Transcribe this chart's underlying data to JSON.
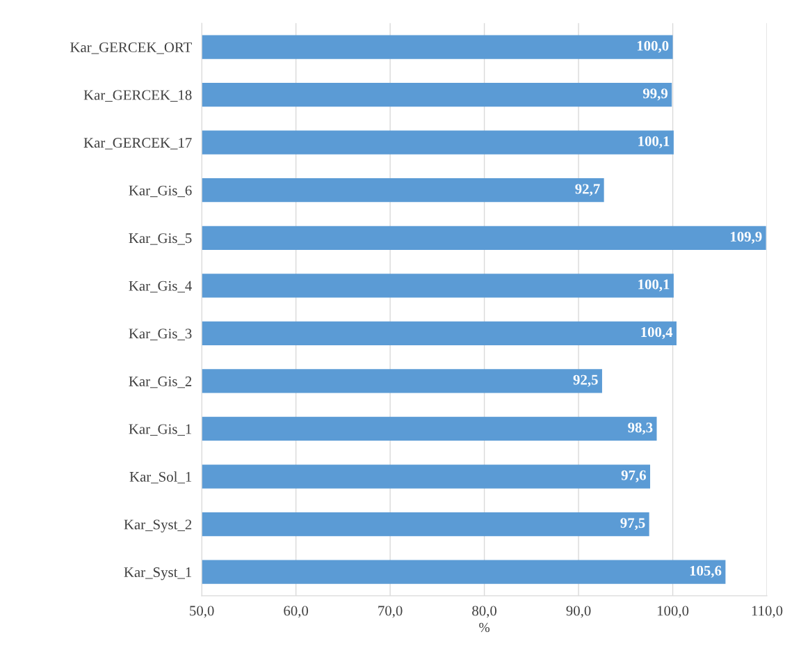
{
  "chart_data": {
    "type": "bar",
    "orientation": "horizontal",
    "xlabel": "%",
    "categories": [
      "Kar_GERCEK_ORT",
      "Kar_GERCEK_18",
      "Kar_GERCEK_17",
      "Kar_Gis_6",
      "Kar_Gis_5",
      "Kar_Gis_4",
      "Kar_Gis_3",
      "Kar_Gis_2",
      "Kar_Gis_1",
      "Kar_Sol_1",
      "Kar_Syst_2",
      "Kar_Syst_1"
    ],
    "values": [
      100.0,
      99.9,
      100.1,
      92.7,
      109.9,
      100.1,
      100.4,
      92.5,
      98.3,
      97.6,
      97.5,
      105.6
    ],
    "value_labels": [
      "100,0",
      "99,9",
      "100,1",
      "92,7",
      "109,9",
      "100,1",
      "100,4",
      "92,5",
      "98,3",
      "97,6",
      "97,5",
      "105,6"
    ],
    "color": "#5b9bd5",
    "xlim": [
      50,
      110
    ],
    "xticks": [
      {
        "value": 50,
        "label": "50,0"
      },
      {
        "value": 60,
        "label": "60,0"
      },
      {
        "value": 70,
        "label": "70,0"
      },
      {
        "value": 80,
        "label": "80,0"
      },
      {
        "value": 90,
        "label": "90,0"
      },
      {
        "value": 100,
        "label": "100,0"
      },
      {
        "value": 110,
        "label": "110,0"
      }
    ],
    "grid": "x"
  }
}
